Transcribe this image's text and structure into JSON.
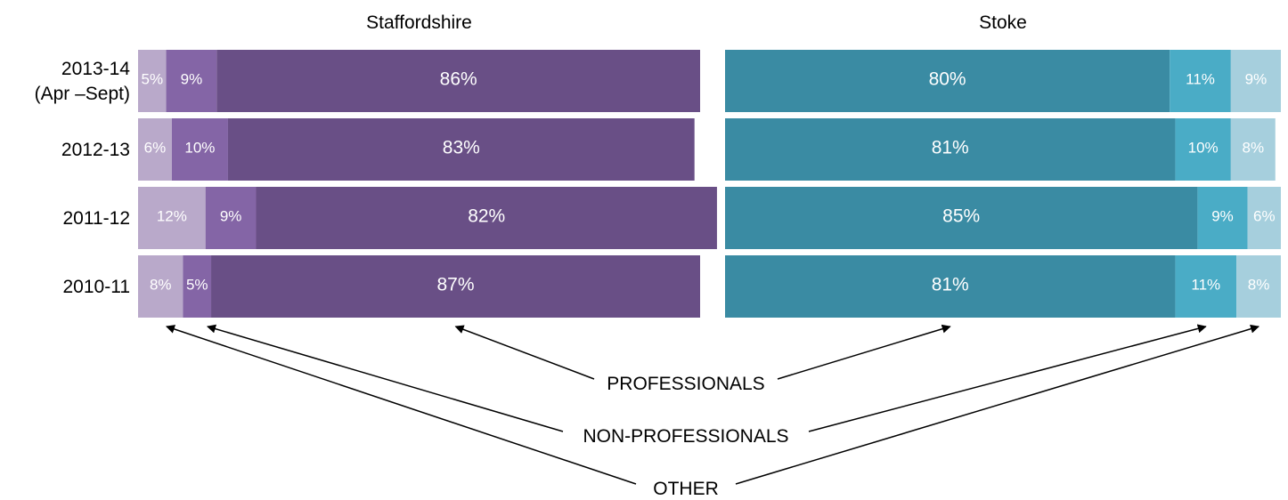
{
  "chart_data": {
    "type": "bar",
    "stacked": true,
    "orientation": "horizontal",
    "categories": [
      "2013-14 (Apr –Sept)",
      "2012-13",
      "2011-12",
      "2010-11"
    ],
    "category_lines": [
      [
        "2013-14",
        "(Apr –Sept)"
      ],
      [
        "2012-13"
      ],
      [
        "2011-12"
      ],
      [
        "2010-11"
      ]
    ],
    "panels": [
      {
        "title": "Staffordshire",
        "segment_order": [
          "OTHER",
          "NON-PROFESSIONALS",
          "PROFESSIONALS"
        ],
        "colors": {
          "OTHER": "#b9a9ca",
          "NON-PROFESSIONALS": "#8465a6",
          "PROFESSIONALS": "#694f86"
        },
        "series": [
          {
            "name": "OTHER",
            "values": [
              5,
              6,
              12,
              8
            ]
          },
          {
            "name": "NON-PROFESSIONALS",
            "values": [
              9,
              10,
              9,
              5
            ]
          },
          {
            "name": "PROFESSIONALS",
            "values": [
              86,
              83,
              82,
              87
            ]
          }
        ]
      },
      {
        "title": "Stoke",
        "segment_order": [
          "PROFESSIONALS",
          "NON-PROFESSIONALS",
          "OTHER"
        ],
        "colors": {
          "PROFESSIONALS": "#3a8ba3",
          "NON-PROFESSIONALS": "#4aacc6",
          "OTHER": "#a6cfdd"
        },
        "series": [
          {
            "name": "PROFESSIONALS",
            "values": [
              80,
              81,
              85,
              81
            ]
          },
          {
            "name": "NON-PROFESSIONALS",
            "values": [
              11,
              10,
              9,
              11
            ]
          },
          {
            "name": "OTHER",
            "values": [
              9,
              8,
              6,
              8
            ]
          }
        ]
      }
    ],
    "annotations": [
      "PROFESSIONALS",
      "NON-PROFESSIONALS",
      "OTHER"
    ],
    "value_suffix": "%",
    "xlim": [
      0,
      100
    ]
  }
}
